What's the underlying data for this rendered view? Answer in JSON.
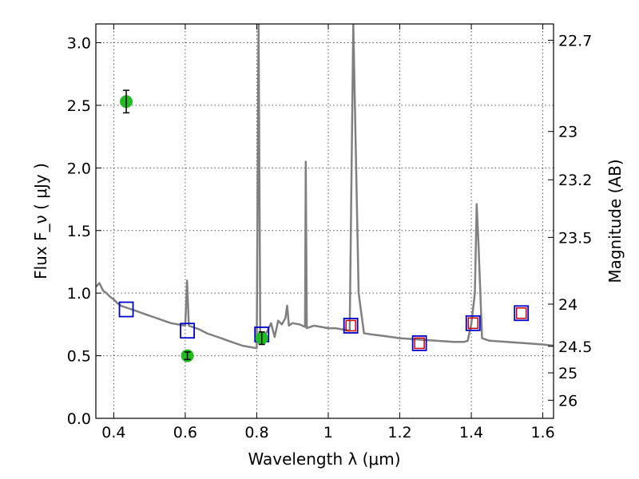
{
  "chart_data": {
    "type": "scatter",
    "title": "",
    "xlabel": "Wavelength  λ (μm)",
    "ylabel": "Flux  F_ν  ( μJy )",
    "y2label": "Magnitude (AB)",
    "xlim": [
      0.35,
      1.63
    ],
    "ylim": [
      0.0,
      3.15
    ],
    "grid": true,
    "x_ticks": [
      0.4,
      0.6,
      0.8,
      1.0,
      1.2,
      1.4,
      1.6
    ],
    "x_tick_labels": [
      "0.4",
      "0.6",
      "0.8",
      "1",
      "1.2",
      "1.4",
      "1.6"
    ],
    "y_ticks": [
      0.0,
      0.5,
      1.0,
      1.5,
      2.0,
      2.5,
      3.0
    ],
    "y_tick_labels": [
      "0.0",
      "0.5",
      "1.0",
      "1.5",
      "2.0",
      "2.5",
      "3.0"
    ],
    "y2_ticks": [
      "22.7",
      "23",
      "23.2",
      "23.5",
      "24",
      "24.5",
      "25",
      "26"
    ],
    "colors": {
      "model": "#808080",
      "observed": "#22bb22",
      "model_photometry_box": "#0000cc",
      "inner_box": "#cc0000"
    },
    "series": [
      {
        "kind": "line",
        "points": [
          [
            0.35,
            1.05
          ],
          [
            0.36,
            1.08
          ],
          [
            0.37,
            1.02
          ],
          [
            0.38,
            1.0
          ],
          [
            0.39,
            0.97
          ],
          [
            0.4,
            0.95
          ],
          [
            0.41,
            0.92
          ],
          [
            0.42,
            0.9
          ],
          [
            0.44,
            0.88
          ],
          [
            0.46,
            0.86
          ],
          [
            0.48,
            0.84
          ],
          [
            0.5,
            0.82
          ],
          [
            0.52,
            0.8
          ],
          [
            0.54,
            0.78
          ],
          [
            0.56,
            0.76
          ],
          [
            0.58,
            0.75
          ],
          [
            0.6,
            0.74
          ],
          [
            0.605,
            1.1
          ],
          [
            0.61,
            0.74
          ],
          [
            0.64,
            0.71
          ],
          [
            0.66,
            0.68
          ],
          [
            0.68,
            0.66
          ],
          [
            0.7,
            0.64
          ],
          [
            0.72,
            0.62
          ],
          [
            0.74,
            0.6
          ],
          [
            0.76,
            0.58
          ],
          [
            0.78,
            0.57
          ],
          [
            0.8,
            0.56
          ],
          [
            0.805,
            3.15
          ],
          [
            0.81,
            0.6
          ],
          [
            0.82,
            0.65
          ],
          [
            0.83,
            0.7
          ],
          [
            0.84,
            0.76
          ],
          [
            0.85,
            0.65
          ],
          [
            0.86,
            0.78
          ],
          [
            0.87,
            0.75
          ],
          [
            0.88,
            0.8
          ],
          [
            0.885,
            0.9
          ],
          [
            0.89,
            0.74
          ],
          [
            0.9,
            0.76
          ],
          [
            0.92,
            0.75
          ],
          [
            0.935,
            0.73
          ],
          [
            0.937,
            2.05
          ],
          [
            0.94,
            0.72
          ],
          [
            0.96,
            0.74
          ],
          [
            0.98,
            0.73
          ],
          [
            1.0,
            0.72
          ],
          [
            1.02,
            0.72
          ],
          [
            1.04,
            0.71
          ],
          [
            1.06,
            0.7
          ],
          [
            1.07,
            3.15
          ],
          [
            1.085,
            1.0
          ],
          [
            1.1,
            0.68
          ],
          [
            1.12,
            0.67
          ],
          [
            1.15,
            0.66
          ],
          [
            1.2,
            0.64
          ],
          [
            1.25,
            0.63
          ],
          [
            1.3,
            0.62
          ],
          [
            1.35,
            0.61
          ],
          [
            1.38,
            0.61
          ],
          [
            1.39,
            0.62
          ],
          [
            1.4,
            0.75
          ],
          [
            1.41,
            1.0
          ],
          [
            1.415,
            1.71
          ],
          [
            1.42,
            1.4
          ],
          [
            1.43,
            0.64
          ],
          [
            1.45,
            0.62
          ],
          [
            1.5,
            0.61
          ],
          [
            1.55,
            0.6
          ],
          [
            1.6,
            0.59
          ],
          [
            1.63,
            0.58
          ]
        ]
      },
      {
        "kind": "observed",
        "points": [
          {
            "x": 0.435,
            "y": 2.53,
            "err": 0.09
          },
          {
            "x": 0.606,
            "y": 0.5,
            "err": 0.03
          },
          {
            "x": 0.814,
            "y": 0.64,
            "err": 0.05
          }
        ]
      },
      {
        "kind": "model_photometry",
        "points": [
          {
            "x": 0.435,
            "y": 0.87,
            "inner": false
          },
          {
            "x": 0.606,
            "y": 0.7,
            "inner": false
          },
          {
            "x": 0.814,
            "y": 0.67,
            "inner": false
          },
          {
            "x": 1.063,
            "y": 0.74,
            "inner": true
          },
          {
            "x": 1.255,
            "y": 0.6,
            "inner": true
          },
          {
            "x": 1.405,
            "y": 0.76,
            "inner": true
          },
          {
            "x": 1.54,
            "y": 0.84,
            "inner": true
          }
        ]
      }
    ]
  }
}
